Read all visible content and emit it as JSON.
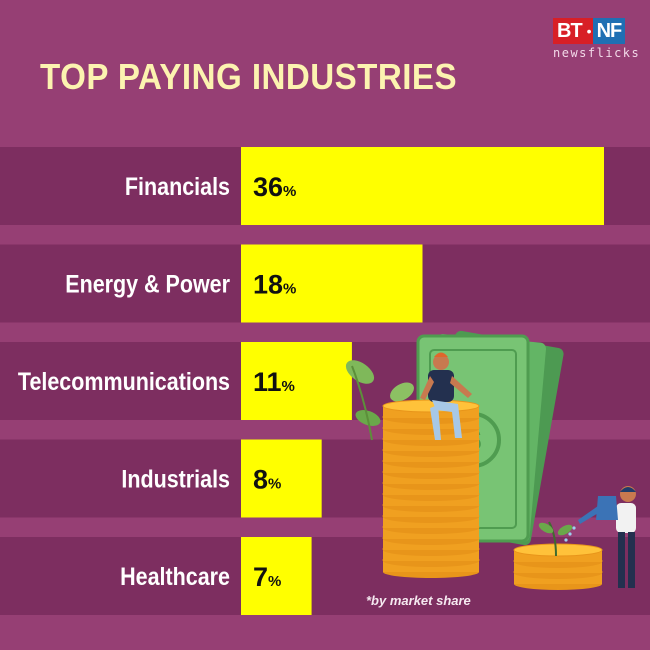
{
  "title": "TOP PAYING INDUSTRIES",
  "logo": {
    "left": "BT",
    "right": "NF",
    "sub": "newsflicks"
  },
  "footnote": "*by market share",
  "colors": {
    "background": "#963f74",
    "band": "#7d2e60",
    "bar": "#ffff00",
    "title": "#fcf3b0"
  },
  "chart_data": {
    "type": "bar",
    "orientation": "horizontal",
    "categories": [
      "Financials",
      "Energy & Power",
      "Telecommunications",
      "Industrials",
      "Healthcare"
    ],
    "values": [
      36,
      18,
      11,
      8,
      7
    ],
    "unit": "%",
    "title": "TOP PAYING INDUSTRIES"
  }
}
